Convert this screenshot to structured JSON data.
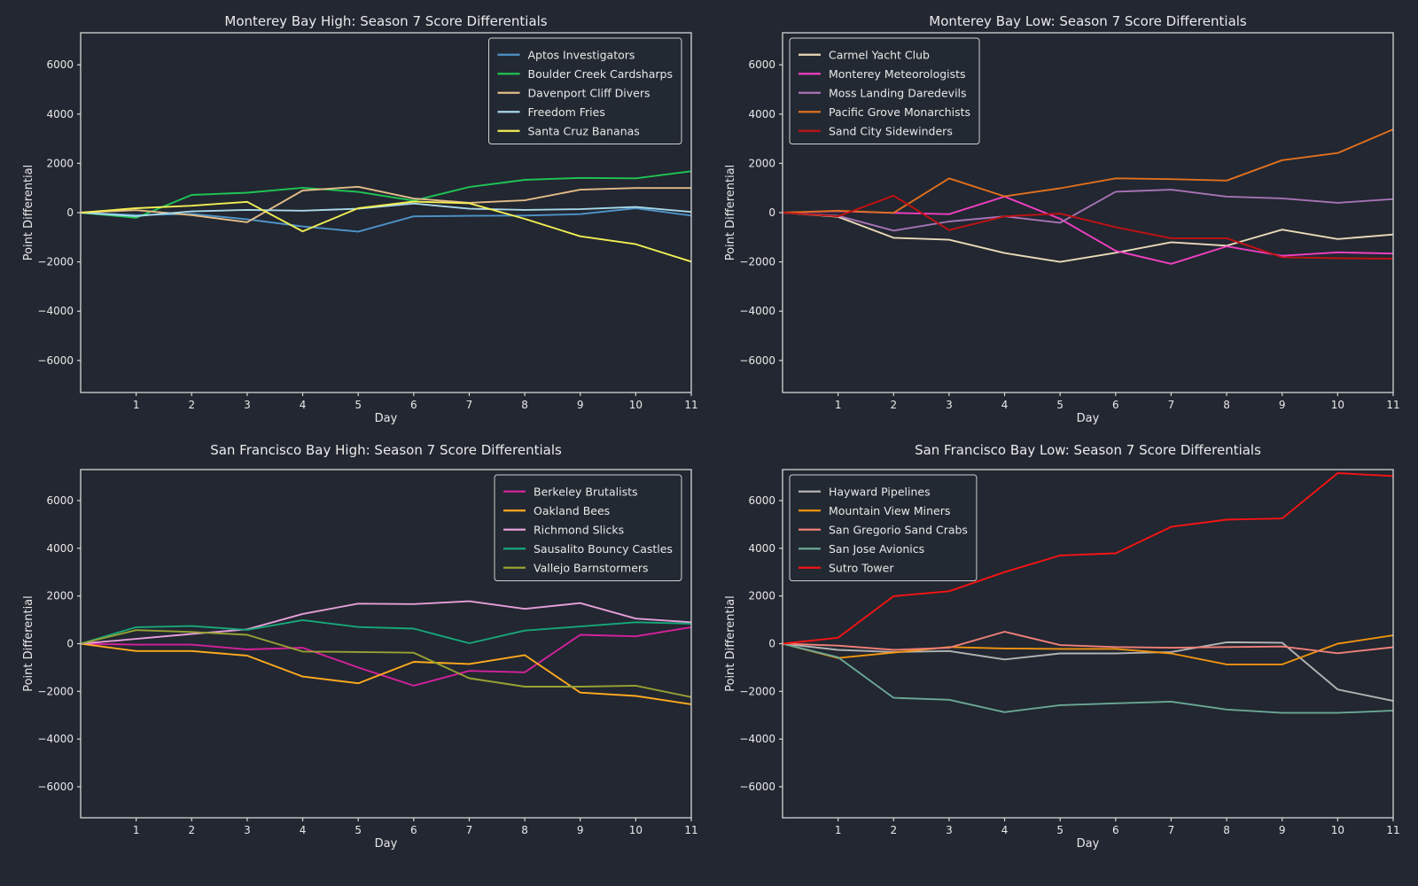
{
  "figure": {
    "background": "#222731",
    "spine_color": "#d6d6d6",
    "text_color": "#e8e8e8",
    "legend_face": "#242932",
    "legend_edge": "#cfcfcf"
  },
  "axes": {
    "xlabel": "Day",
    "ylabel": "Point Differential",
    "xlim": [
      0,
      11
    ],
    "ylim": [
      -7300,
      7300
    ],
    "x_ticks": [
      1,
      2,
      3,
      4,
      5,
      6,
      7,
      8,
      9,
      10,
      11
    ],
    "x_tick_labels": [
      "1",
      "2",
      "3",
      "4",
      "5",
      "6",
      "7",
      "8",
      "9",
      "10",
      "11"
    ],
    "y_ticks": [
      6000,
      4000,
      2000,
      0,
      -2000,
      -4000,
      -6000
    ],
    "y_tick_labels": [
      "6000",
      "4000",
      "2000",
      "0",
      "−2000",
      "−4000",
      "−6000"
    ],
    "grid": false
  },
  "chart_data": [
    {
      "type": "line",
      "title": "Monterey Bay High: Season 7 Score Differentials",
      "legend_position": "upper-right",
      "x": [
        0,
        1,
        2,
        3,
        4,
        5,
        6,
        7,
        8,
        9,
        10,
        11
      ],
      "series": [
        {
          "name": "Aptos Investigators",
          "color": "#4e93c8",
          "values": [
            0,
            -100,
            -50,
            -270,
            -560,
            -770,
            -150,
            -130,
            -120,
            -60,
            180,
            -120
          ]
        },
        {
          "name": "Boulder Creek Cardsharps",
          "color": "#1fc455",
          "values": [
            0,
            -210,
            720,
            810,
            1010,
            840,
            490,
            1040,
            1330,
            1410,
            1390,
            1680
          ]
        },
        {
          "name": "Davenport Cliff Divers",
          "color": "#e4bc88",
          "values": [
            0,
            100,
            -100,
            -390,
            900,
            1050,
            570,
            400,
            500,
            930,
            1000,
            1000
          ]
        },
        {
          "name": "Freedom Fries",
          "color": "#a8d8e8",
          "values": [
            0,
            -140,
            50,
            110,
            80,
            160,
            370,
            160,
            110,
            140,
            230,
            30
          ]
        },
        {
          "name": "Santa Cruz Bananas",
          "color": "#f2ee55",
          "values": [
            0,
            180,
            280,
            440,
            -760,
            180,
            450,
            380,
            -250,
            -960,
            -1280,
            -1990
          ]
        }
      ]
    },
    {
      "type": "line",
      "title": "Monterey Bay Low: Season 7 Score Differentials",
      "legend_position": "upper-left",
      "x": [
        0,
        1,
        2,
        3,
        4,
        5,
        6,
        7,
        8,
        9,
        10,
        11
      ],
      "series": [
        {
          "name": "Carmel Yacht Club",
          "color": "#e9dab9",
          "values": [
            0,
            -170,
            -1020,
            -1100,
            -1640,
            -2000,
            -1630,
            -1200,
            -1340,
            -690,
            -1070,
            -890
          ]
        },
        {
          "name": "Monterey Meteorologists",
          "color": "#f23fc3",
          "values": [
            0,
            60,
            -10,
            -60,
            650,
            -250,
            -1550,
            -2080,
            -1370,
            -1750,
            -1610,
            -1660
          ]
        },
        {
          "name": "Moss Landing Daredevils",
          "color": "#a873b5",
          "values": [
            0,
            -130,
            -730,
            -360,
            -150,
            -410,
            850,
            930,
            650,
            580,
            400,
            550
          ]
        },
        {
          "name": "Pacific Grove Monarchists",
          "color": "#e0701e",
          "values": [
            0,
            80,
            -10,
            1390,
            660,
            990,
            1390,
            1360,
            1300,
            2130,
            2420,
            3380
          ]
        },
        {
          "name": "Sand City Sidewinders",
          "color": "#c01212",
          "values": [
            0,
            -150,
            690,
            -710,
            -150,
            -40,
            -590,
            -1040,
            -1040,
            -1810,
            -1850,
            -1870
          ]
        }
      ]
    },
    {
      "type": "line",
      "title": "San Francisco Bay High: Season 7 Score Differentials",
      "legend_position": "upper-right",
      "x": [
        0,
        1,
        2,
        3,
        4,
        5,
        6,
        7,
        8,
        9,
        10,
        11
      ],
      "series": [
        {
          "name": "Berkeley Brutalists",
          "color": "#d4219c",
          "values": [
            0,
            -40,
            -40,
            -240,
            -170,
            -1000,
            -1760,
            -1140,
            -1200,
            370,
            310,
            690
          ]
        },
        {
          "name": "Oakland Bees",
          "color": "#ffaa1e",
          "values": [
            0,
            -310,
            -310,
            -500,
            -1380,
            -1660,
            -760,
            -850,
            -480,
            -2050,
            -2190,
            -2540
          ]
        },
        {
          "name": "Richmond Slicks",
          "color": "#e59fd8",
          "values": [
            0,
            200,
            410,
            600,
            1250,
            1680,
            1660,
            1780,
            1460,
            1700,
            1050,
            900
          ]
        },
        {
          "name": "Sausalito Bouncy Castles",
          "color": "#17a77a",
          "values": [
            0,
            690,
            740,
            580,
            990,
            700,
            630,
            20,
            550,
            720,
            900,
            840
          ]
        },
        {
          "name": "Vallejo Barnstormers",
          "color": "#98a233",
          "values": [
            0,
            570,
            490,
            370,
            -330,
            -350,
            -380,
            -1450,
            -1800,
            -1800,
            -1760,
            -2240
          ]
        }
      ]
    },
    {
      "type": "line",
      "title": "San Francisco Bay Low: Season 7 Score Differentials",
      "legend_position": "upper-left",
      "x": [
        0,
        1,
        2,
        3,
        4,
        5,
        6,
        7,
        8,
        9,
        10,
        11
      ],
      "series": [
        {
          "name": "Hayward Pipelines",
          "color": "#b3b3b3",
          "values": [
            0,
            -260,
            -350,
            -310,
            -660,
            -410,
            -410,
            -350,
            60,
            40,
            -1920,
            -2400
          ]
        },
        {
          "name": "Mountain View Miners",
          "color": "#f0940f",
          "values": [
            0,
            -600,
            -370,
            -140,
            -200,
            -220,
            -220,
            -410,
            -870,
            -870,
            0,
            350
          ]
        },
        {
          "name": "San Gregorio Sand Crabs",
          "color": "#f08078",
          "values": [
            0,
            -80,
            -260,
            -170,
            500,
            -60,
            -140,
            -170,
            -140,
            -120,
            -400,
            -150
          ]
        },
        {
          "name": "San Jose Avionics",
          "color": "#6aa795",
          "values": [
            0,
            -570,
            -2270,
            -2350,
            -2870,
            -2580,
            -2500,
            -2430,
            -2760,
            -2900,
            -2900,
            -2810
          ]
        },
        {
          "name": "Sutro Tower",
          "color": "#f51414",
          "values": [
            0,
            250,
            1990,
            2200,
            3000,
            3700,
            3790,
            4900,
            5200,
            5250,
            7150,
            7030
          ]
        }
      ]
    }
  ]
}
